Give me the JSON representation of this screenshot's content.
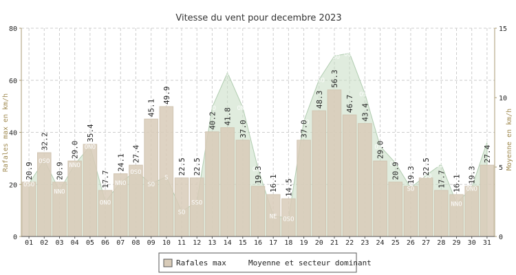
{
  "chart_data": {
    "type": "bar",
    "title": "Vitesse du vent pour decembre 2023",
    "ylabel": "Rafales max en km/h",
    "y2label": "Moyenne en km/h",
    "ylim": [
      0,
      80
    ],
    "y2lim": [
      0,
      15
    ],
    "yticks": [
      "0",
      "20",
      "40",
      "60",
      "80"
    ],
    "y2ticks": [
      "0",
      "5",
      "10",
      "15"
    ],
    "grid": true,
    "legend_position": "bottom-center",
    "categories": [
      "01",
      "02",
      "03",
      "04",
      "05",
      "06",
      "07",
      "08",
      "09",
      "10",
      "11",
      "12",
      "13",
      "14",
      "15",
      "16",
      "17",
      "18",
      "19",
      "20",
      "21",
      "22",
      "23",
      "24",
      "25",
      "26",
      "27",
      "28",
      "29",
      "30",
      "31"
    ],
    "series": [
      {
        "name": "Rafales max",
        "type": "bar",
        "axis": "left",
        "color": "#d8cbb8",
        "values": [
          20.9,
          32.2,
          20.9,
          29.0,
          35.4,
          17.7,
          24.1,
          27.4,
          45.1,
          49.9,
          22.5,
          22.5,
          40.2,
          41.8,
          37.0,
          19.3,
          16.1,
          14.5,
          37.0,
          48.3,
          56.3,
          46.7,
          43.4,
          29.0,
          20.9,
          19.3,
          22.5,
          17.7,
          16.1,
          19.3,
          27.4
        ],
        "labels": [
          "20.9",
          "32.2",
          "20.9",
          "29.0",
          "35.4",
          "17.7",
          "24.1",
          "27.4",
          "45.1",
          "49.9",
          "22.5",
          "22.5",
          "40.2",
          "41.8",
          "37.0",
          "19.3",
          "16.1",
          "14.5",
          "37.0",
          "48.3",
          "56.3",
          "46.7",
          "43.4",
          "29.0",
          "20.9",
          "19.3",
          "22.5",
          "17.7",
          "16.1",
          "19.3",
          "27.4"
        ]
      },
      {
        "name": "Moyenne et secteur dominant",
        "type": "area",
        "axis": "right",
        "color": "#c7dcc3",
        "values": [
          3.8,
          5.5,
          3.3,
          5.2,
          6.5,
          2.5,
          3.9,
          4.7,
          3.8,
          4.3,
          1.8,
          2.5,
          9.3,
          11.8,
          9.3,
          4.9,
          1.5,
          1.3,
          8.3,
          11.3,
          13.0,
          13.2,
          10.3,
          6.5,
          5.3,
          3.5,
          4.4,
          5.2,
          2.4,
          3.5,
          6.8
        ],
        "sectors": [
          "OSO",
          "OSO",
          "NNO",
          "NNO",
          "ONO",
          "ONO",
          "NNO",
          "OSO",
          "SO",
          "S",
          "SO",
          "SSO",
          "SO",
          "OSO",
          "ONO",
          "OSO",
          "NE",
          "OSO",
          "OSO",
          "OSO",
          "OSO",
          "OSO",
          "OSO",
          "OSO",
          "OSO",
          "SO",
          "OSO",
          "OSO",
          "NNO",
          "ONO",
          "OSO"
        ]
      }
    ],
    "legend": [
      "Rafales max",
      "Moyenne et secteur dominant"
    ]
  },
  "colors": {
    "bar_fill": "#d8cbb8",
    "bar_stroke": "#d0c4b1",
    "area_fill": "#c7dcc3",
    "area_stroke": "#b0ccb0",
    "axis": "#a89a70",
    "grid": "#cccccc",
    "text": "#222222",
    "sector_text": "#ffffff"
  }
}
